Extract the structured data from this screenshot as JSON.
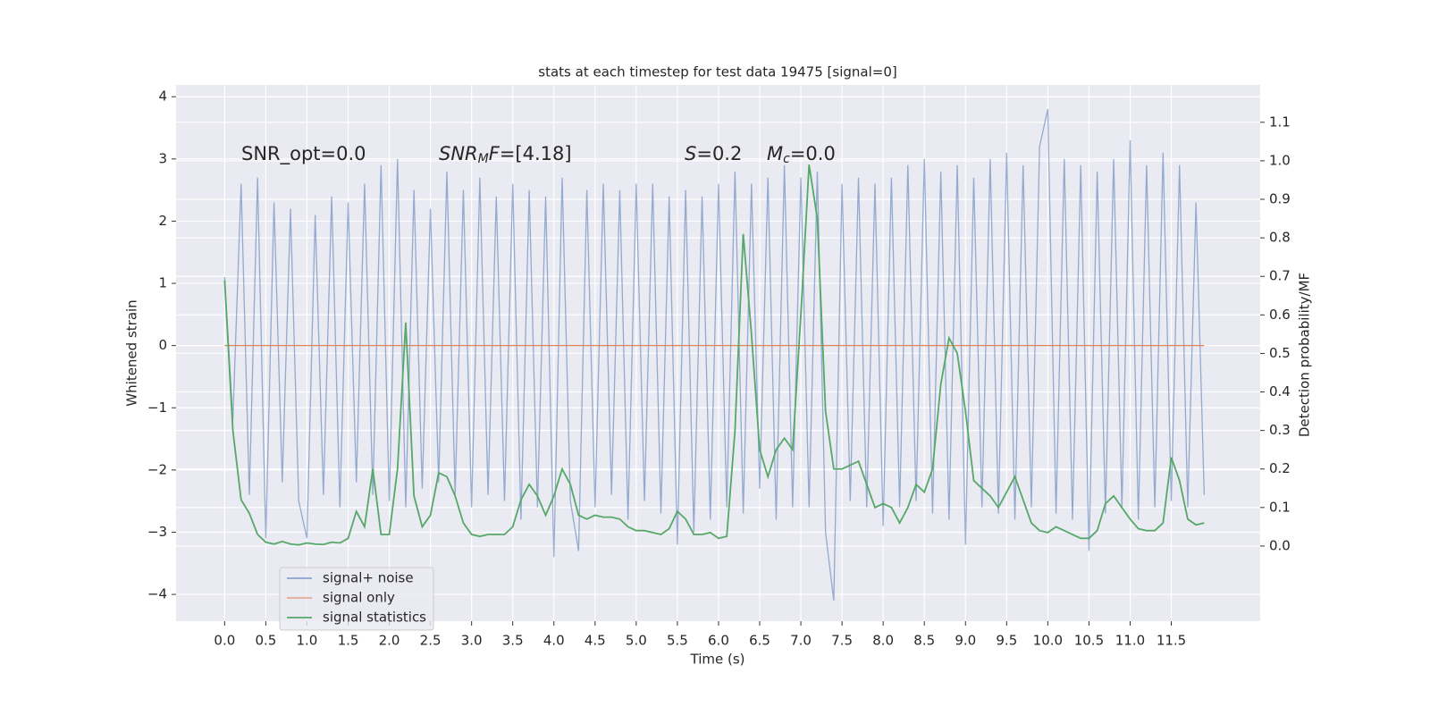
{
  "chart_data": {
    "type": "line",
    "title": "stats at each timestep for test data 19475 [signal=0]",
    "xlabel": "Time (s)",
    "ylabel": "Whitened strain",
    "y2label": "Detection probability/MF",
    "annotations": {
      "snr_opt": "SNR_opt=0.0",
      "snr_mf": [
        "SNR",
        "M",
        "F",
        "=[4.18]"
      ],
      "s": [
        "S",
        "=0.2"
      ],
      "mc": [
        "M",
        "c",
        "=0.0"
      ]
    },
    "xlim": [
      -0.59,
      12.58
    ],
    "ylim": [
      -4.43,
      4.19
    ],
    "y2lim": [
      -0.195,
      1.197
    ],
    "xticks": [
      {
        "value": 0,
        "label": "0.0"
      },
      0.5,
      {
        "value": 1,
        "label": "1.0"
      },
      1.5,
      {
        "value": 2,
        "label": "2.0"
      },
      2.5,
      {
        "value": 3,
        "label": "3.0"
      },
      3.5,
      {
        "value": 4,
        "label": "4.0"
      },
      4.5,
      {
        "value": 5,
        "label": "5.0"
      },
      5.5,
      {
        "value": 6,
        "label": "6.0"
      },
      6.5,
      {
        "value": 7,
        "label": "7.0"
      },
      7.5,
      {
        "value": 8,
        "label": "8.0"
      },
      8.5,
      {
        "value": 9,
        "label": "9.0"
      },
      9.5,
      {
        "value": 10,
        "label": "10.0"
      },
      10.5,
      {
        "value": 11,
        "label": "11.0"
      },
      11.5
    ],
    "yticks": [
      {
        "value": -4,
        "label": "−4"
      },
      {
        "value": -3,
        "label": "−3"
      },
      {
        "value": -2,
        "label": "−2"
      },
      {
        "value": -1,
        "label": "−1"
      },
      0,
      1,
      2,
      3,
      4
    ],
    "y2ticks": [
      {
        "value": 0,
        "label": "0.0"
      },
      0.1,
      0.2,
      0.3,
      0.4,
      0.5,
      0.6,
      0.7,
      0.8,
      0.9,
      {
        "value": 1,
        "label": "1.0"
      },
      1.1
    ],
    "grid": true,
    "legend": "lower left",
    "x": [
      0.0,
      0.1,
      0.2,
      0.3,
      0.4,
      0.5,
      0.6,
      0.7,
      0.8,
      0.9,
      1.0,
      1.1,
      1.2,
      1.3,
      1.4,
      1.5,
      1.6,
      1.7,
      1.8,
      1.9,
      2.0,
      2.1,
      2.2,
      2.3,
      2.4,
      2.5,
      2.6,
      2.7,
      2.8,
      2.9,
      3.0,
      3.1,
      3.2,
      3.3,
      3.4,
      3.5,
      3.6,
      3.7,
      3.8,
      3.9,
      4.0,
      4.1,
      4.2,
      4.3,
      4.4,
      4.5,
      4.6,
      4.7,
      4.8,
      4.9,
      5.0,
      5.1,
      5.2,
      5.3,
      5.4,
      5.5,
      5.6,
      5.7,
      5.8,
      5.9,
      6.0,
      6.1,
      6.2,
      6.3,
      6.4,
      6.5,
      6.6,
      6.7,
      6.8,
      6.9,
      7.0,
      7.1,
      7.2,
      7.3,
      7.4,
      7.5,
      7.6,
      7.7,
      7.8,
      7.9,
      8.0,
      8.1,
      8.2,
      8.3,
      8.4,
      8.5,
      8.6,
      8.7,
      8.8,
      8.9,
      9.0,
      9.1,
      9.2,
      9.3,
      9.4,
      9.5,
      9.6,
      9.7,
      9.8,
      9.9,
      10.0,
      10.1,
      10.2,
      10.3,
      10.4,
      10.5,
      10.6,
      10.7,
      10.8,
      10.9,
      11.0,
      11.1,
      11.2,
      11.3,
      11.4,
      11.5,
      11.6,
      11.7,
      11.8,
      11.9
    ],
    "series": [
      {
        "name": "signal+ noise",
        "color": "#4c72b0",
        "values": [
          1.1,
          -1.2,
          2.6,
          -2.4,
          2.7,
          -3.1,
          2.3,
          -2.2,
          2.2,
          -2.5,
          -3.1,
          2.1,
          -2.4,
          2.4,
          -2.6,
          2.3,
          -2.2,
          2.6,
          -2.4,
          2.9,
          -2.5,
          3.0,
          -2.6,
          2.5,
          -2.3,
          2.2,
          -2.2,
          2.8,
          -2.4,
          2.5,
          -2.6,
          2.7,
          -2.4,
          2.4,
          -2.5,
          2.6,
          -2.8,
          2.5,
          -2.6,
          2.4,
          -3.4,
          2.7,
          -2.5,
          -3.3,
          2.5,
          -2.6,
          2.6,
          -2.4,
          2.5,
          -2.8,
          2.6,
          -2.5,
          2.6,
          -2.7,
          2.4,
          -3.2,
          2.5,
          -3.0,
          2.4,
          -2.8,
          2.6,
          -2.6,
          2.8,
          -2.7,
          2.6,
          -2.3,
          2.7,
          -2.8,
          2.9,
          -2.6,
          2.7,
          -2.6,
          2.8,
          -3.0,
          -4.1,
          2.6,
          -2.5,
          2.7,
          -2.6,
          2.6,
          -2.9,
          2.7,
          -2.6,
          2.9,
          -2.5,
          3.0,
          -2.7,
          2.8,
          -2.8,
          2.9,
          -3.2,
          2.7,
          -2.6,
          3.0,
          -2.7,
          3.1,
          -2.8,
          2.9,
          -2.6,
          3.2,
          3.8,
          -2.7,
          3.0,
          -2.8,
          2.9,
          -3.3,
          2.8,
          -2.7,
          3.0,
          -2.6,
          3.3,
          -2.8,
          2.9,
          -2.6,
          3.1,
          -2.5,
          2.9,
          -2.6,
          2.3,
          -2.4
        ]
      },
      {
        "name": "signal only",
        "color": "#dd8452",
        "values": [
          0,
          0,
          0,
          0,
          0,
          0,
          0,
          0,
          0,
          0,
          0,
          0,
          0,
          0,
          0,
          0,
          0,
          0,
          0,
          0,
          0,
          0,
          0,
          0,
          0,
          0,
          0,
          0,
          0,
          0,
          0,
          0,
          0,
          0,
          0,
          0,
          0,
          0,
          0,
          0,
          0,
          0,
          0,
          0,
          0,
          0,
          0,
          0,
          0,
          0,
          0,
          0,
          0,
          0,
          0,
          0,
          0,
          0,
          0,
          0,
          0,
          0,
          0,
          0,
          0,
          0,
          0,
          0,
          0,
          0,
          0,
          0,
          0,
          0,
          0,
          0,
          0,
          0,
          0,
          0,
          0,
          0,
          0,
          0,
          0,
          0,
          0,
          0,
          0,
          0,
          0,
          0,
          0,
          0,
          0,
          0,
          0,
          0,
          0,
          0,
          0,
          0,
          0,
          0,
          0,
          0,
          0,
          0,
          0,
          0,
          0,
          0,
          0,
          0,
          0,
          0,
          0,
          0,
          0,
          0
        ]
      },
      {
        "name": "signal statistics",
        "color": "#55a868",
        "axis": "y2",
        "values": [
          0.69,
          0.3,
          0.12,
          0.085,
          0.03,
          0.01,
          0.005,
          0.012,
          0.005,
          0.003,
          0.008,
          0.005,
          0.004,
          0.01,
          0.008,
          0.02,
          0.09,
          0.05,
          0.2,
          0.03,
          0.03,
          0.2,
          0.58,
          0.13,
          0.05,
          0.08,
          0.19,
          0.18,
          0.13,
          0.06,
          0.03,
          0.025,
          0.03,
          0.03,
          0.03,
          0.05,
          0.12,
          0.16,
          0.13,
          0.08,
          0.13,
          0.2,
          0.16,
          0.08,
          0.07,
          0.08,
          0.075,
          0.075,
          0.07,
          0.05,
          0.04,
          0.04,
          0.035,
          0.03,
          0.045,
          0.09,
          0.07,
          0.03,
          0.03,
          0.035,
          0.02,
          0.025,
          0.3,
          0.81,
          0.55,
          0.25,
          0.18,
          0.25,
          0.28,
          0.25,
          0.6,
          0.99,
          0.85,
          0.35,
          0.2,
          0.2,
          0.21,
          0.22,
          0.16,
          0.1,
          0.11,
          0.1,
          0.06,
          0.1,
          0.16,
          0.14,
          0.2,
          0.42,
          0.54,
          0.5,
          0.35,
          0.17,
          0.15,
          0.13,
          0.1,
          0.14,
          0.18,
          0.12,
          0.06,
          0.04,
          0.035,
          0.05,
          0.04,
          0.03,
          0.02,
          0.02,
          0.04,
          0.11,
          0.13,
          0.1,
          0.07,
          0.045,
          0.04,
          0.04,
          0.06,
          0.23,
          0.17,
          0.07,
          0.055,
          0.06
        ]
      }
    ]
  }
}
